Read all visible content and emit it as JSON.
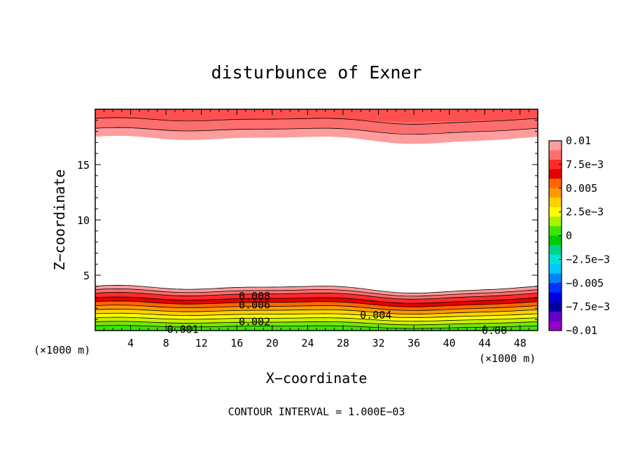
{
  "chart_data": {
    "type": "contour",
    "title": "disturbunce of Exner",
    "xlabel": "X−coordinate",
    "ylabel": "Z−coordinate",
    "x_unit_left": "(×1000 m)",
    "x_unit_right": "(×1000 m)",
    "footer": "CONTOUR INTERVAL = 1.000E−03",
    "xlim": [
      0,
      50
    ],
    "ylim": [
      0,
      20
    ],
    "x_ticks": [
      "4",
      "8",
      "12",
      "16",
      "20",
      "24",
      "28",
      "32",
      "36",
      "40",
      "44",
      "48"
    ],
    "x_tick_values": [
      4,
      8,
      12,
      16,
      20,
      24,
      28,
      32,
      36,
      40,
      44,
      48
    ],
    "y_ticks": [
      "5",
      "10",
      "15"
    ],
    "y_tick_values": [
      5,
      10,
      15
    ],
    "contour_interval": 0.001,
    "contour_labels": [
      {
        "text": "0.008",
        "x": 18,
        "z": 3.1
      },
      {
        "text": "0.006",
        "x": 18,
        "z": 2.3
      },
      {
        "text": "0.002",
        "x": 18,
        "z": 0.8
      },
      {
        "text": "0.001",
        "x": 9.9,
        "z": 0.1
      },
      {
        "text": "0.004",
        "x": 31.7,
        "z": 1.4
      },
      {
        "text": "0.00",
        "x": 45.1,
        "z": 0.0
      }
    ],
    "colorbar": {
      "labels": [
        "0.01",
        "7.5e−3",
        "0.005",
        "2.5e−3",
        "0",
        "−2.5e−3",
        "−0.005",
        "−7.5e−3",
        "−0.01"
      ],
      "values": [
        0.01,
        0.0075,
        0.005,
        0.0025,
        0,
        -0.0025,
        -0.005,
        -0.0075,
        -0.01
      ],
      "colors": [
        "#ff9c9c",
        "#ff6e6e",
        "#ff2a2a",
        "#e60000",
        "#ff6600",
        "#ff9a00",
        "#ffd200",
        "#ffff00",
        "#aaf000",
        "#3ce600",
        "#00c800",
        "#00d28c",
        "#00e6d2",
        "#00c8ff",
        "#0082ff",
        "#0032ff",
        "#0000dc",
        "#0000a0",
        "#6400c8",
        "#9600c8"
      ]
    }
  }
}
